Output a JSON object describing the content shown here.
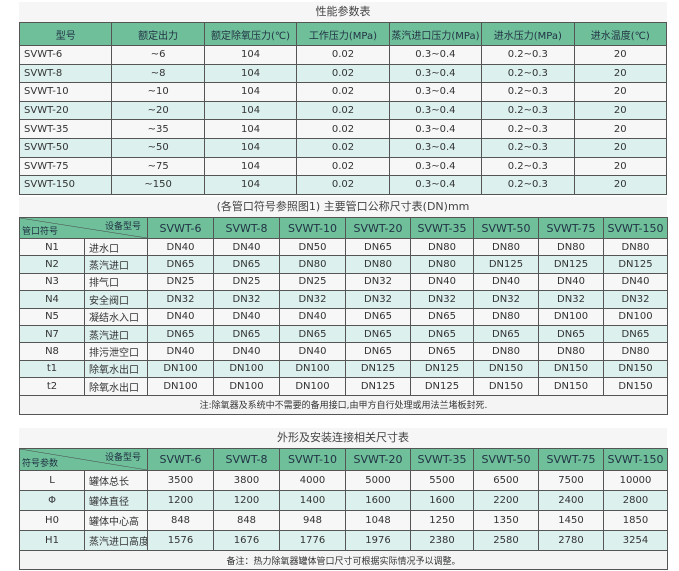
{
  "colors": {
    "header": "#6fbf9b",
    "alt_row": "#dcf1ee",
    "border": "#555555"
  },
  "perf": {
    "title": "性能参数表",
    "headers": [
      "型号",
      "额定出力",
      "额定除氧压力(℃)",
      "工作压力(MPa)",
      "蒸汽进口压力(MPa)",
      "进水压力(MPa)",
      "进水温度(℃)"
    ],
    "rows": [
      [
        "SVWT-6",
        "~6",
        "104",
        "0.02",
        "0.3~0.4",
        "0.2~0.3",
        "20"
      ],
      [
        "SVWT-8",
        "~8",
        "104",
        "0.02",
        "0.3~0.4",
        "0.2~0.3",
        "20"
      ],
      [
        "SVWT-10",
        "~10",
        "104",
        "0.02",
        "0.3~0.4",
        "0.2~0.3",
        "20"
      ],
      [
        "SVWT-20",
        "~20",
        "104",
        "0.02",
        "0.3~0.4",
        "0.2~0.3",
        "20"
      ],
      [
        "SVWT-35",
        "~35",
        "104",
        "0.02",
        "0.3~0.4",
        "0.2~0.3",
        "20"
      ],
      [
        "SVWT-50",
        "~50",
        "104",
        "0.02",
        "0.3~0.4",
        "0.2~0.3",
        "20"
      ],
      [
        "SVWT-75",
        "~75",
        "104",
        "0.02",
        "0.3~0.4",
        "0.2~0.3",
        "20"
      ],
      [
        "SVWT-150",
        "~150",
        "104",
        "0.02",
        "0.3~0.4",
        "0.2~0.3",
        "20"
      ]
    ]
  },
  "pipe": {
    "title": "(各管口符号参照图1) 主要管口公称尺寸表(DN)mm",
    "corner_top": "设备型号",
    "corner_bottom": "管口符号",
    "models": [
      "SVWT-6",
      "SVWT-8",
      "SVWT-10",
      "SVWT-20",
      "SVWT-35",
      "SVWT-50",
      "SVWT-75",
      "SVWT-150"
    ],
    "rows": [
      [
        "N1",
        "进水口",
        "DN40",
        "DN40",
        "DN50",
        "DN65",
        "DN80",
        "DN80",
        "DN80",
        "DN80"
      ],
      [
        "N2",
        "蒸汽进口",
        "DN65",
        "DN65",
        "DN80",
        "DN80",
        "DN80",
        "DN125",
        "DN125",
        "DN125"
      ],
      [
        "N3",
        "排气口",
        "DN25",
        "DN25",
        "DN25",
        "DN32",
        "DN40",
        "DN40",
        "DN40",
        "DN40"
      ],
      [
        "N4",
        "安全阀口",
        "DN32",
        "DN32",
        "DN32",
        "DN32",
        "DN32",
        "DN32",
        "DN32",
        "DN32"
      ],
      [
        "N5",
        "凝结水入口",
        "DN40",
        "DN40",
        "DN40",
        "DN65",
        "DN65",
        "DN80",
        "DN100",
        "DN100"
      ],
      [
        "N7",
        "蒸汽进口",
        "DN65",
        "DN65",
        "DN65",
        "DN65",
        "DN65",
        "DN65",
        "DN65",
        "DN65"
      ],
      [
        "N8",
        "排污泄空口",
        "DN40",
        "DN40",
        "DN40",
        "DN65",
        "DN65",
        "DN80",
        "DN80",
        "DN80"
      ],
      [
        "t1",
        "除氧水出口",
        "DN100",
        "DN100",
        "DN100",
        "DN125",
        "DN125",
        "DN150",
        "DN150",
        "DN150"
      ],
      [
        "t2",
        "除氧水出口",
        "DN100",
        "DN100",
        "DN100",
        "DN125",
        "DN125",
        "DN150",
        "DN150",
        "DN150"
      ]
    ],
    "note": "注:除氧器及系统中不需要的备用接口,由甲方自行处理或用法兰堵板封死."
  },
  "dims": {
    "title": "外形及安装连接相关尺寸表",
    "corner_top": "设备型号",
    "corner_bottom": "符号参数",
    "models": [
      "SVWT-6",
      "SVWT-8",
      "SVWT-10",
      "SVWT-20",
      "SVWT-35",
      "SVWT-50",
      "SVWT-75",
      "SVWT-150"
    ],
    "rows": [
      [
        "L",
        "罐体总长",
        "3500",
        "3800",
        "4000",
        "5000",
        "5500",
        "6500",
        "7500",
        "10000"
      ],
      [
        "Φ",
        "罐体直径",
        "1200",
        "1200",
        "1400",
        "1600",
        "1600",
        "2200",
        "2400",
        "2800"
      ],
      [
        "H0",
        "罐体中心高",
        "848",
        "848",
        "948",
        "1048",
        "1250",
        "1350",
        "1450",
        "1850"
      ],
      [
        "H1",
        "蒸汽进口高度",
        "1576",
        "1676",
        "1776",
        "1976",
        "2380",
        "2580",
        "2780",
        "3254"
      ]
    ],
    "note": "备注：热力除氧器罐体管口尺寸可根据实际情况予以调整。"
  }
}
